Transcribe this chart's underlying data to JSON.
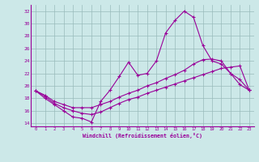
{
  "xlabel": "Windchill (Refroidissement éolien,°C)",
  "bg_color": "#cce8e8",
  "line_color": "#990099",
  "grid_color": "#99bbbb",
  "xlim": [
    -0.5,
    23.5
  ],
  "ylim": [
    13.5,
    33
  ],
  "yticks": [
    14,
    16,
    18,
    20,
    22,
    24,
    26,
    28,
    30,
    32
  ],
  "xticks": [
    0,
    1,
    2,
    3,
    4,
    5,
    6,
    7,
    8,
    9,
    10,
    11,
    12,
    13,
    14,
    15,
    16,
    17,
    18,
    19,
    20,
    21,
    22,
    23
  ],
  "line1_x": [
    0,
    1,
    2,
    3,
    4,
    5,
    6,
    7,
    8,
    9,
    10,
    11,
    12,
    13,
    14,
    15,
    16,
    17,
    18,
    19,
    20,
    21,
    22,
    23
  ],
  "line1_y": [
    19.2,
    18.0,
    17.0,
    16.0,
    15.0,
    14.8,
    14.2,
    17.5,
    19.3,
    21.5,
    23.8,
    21.7,
    22.0,
    24.0,
    28.5,
    30.5,
    32.0,
    31.0,
    26.5,
    24.0,
    23.5,
    22.0,
    20.2,
    19.3
  ],
  "line2_x": [
    0,
    1,
    2,
    3,
    4,
    5,
    6,
    7,
    8,
    9,
    10,
    11,
    12,
    13,
    14,
    15,
    16,
    17,
    18,
    19,
    20,
    21,
    22,
    23
  ],
  "line2_y": [
    19.2,
    18.5,
    17.5,
    17.0,
    16.5,
    16.5,
    16.5,
    17.0,
    17.5,
    18.2,
    18.8,
    19.3,
    20.0,
    20.5,
    21.2,
    21.8,
    22.5,
    23.5,
    24.2,
    24.3,
    24.0,
    22.0,
    21.0,
    19.3
  ],
  "line3_x": [
    0,
    1,
    2,
    3,
    4,
    5,
    6,
    7,
    8,
    9,
    10,
    11,
    12,
    13,
    14,
    15,
    16,
    17,
    18,
    19,
    20,
    21,
    22,
    23
  ],
  "line3_y": [
    19.2,
    18.3,
    17.2,
    16.5,
    16.0,
    15.6,
    15.4,
    15.8,
    16.5,
    17.2,
    17.8,
    18.2,
    18.8,
    19.3,
    19.8,
    20.3,
    20.8,
    21.3,
    21.8,
    22.3,
    22.8,
    23.0,
    23.2,
    19.3
  ]
}
